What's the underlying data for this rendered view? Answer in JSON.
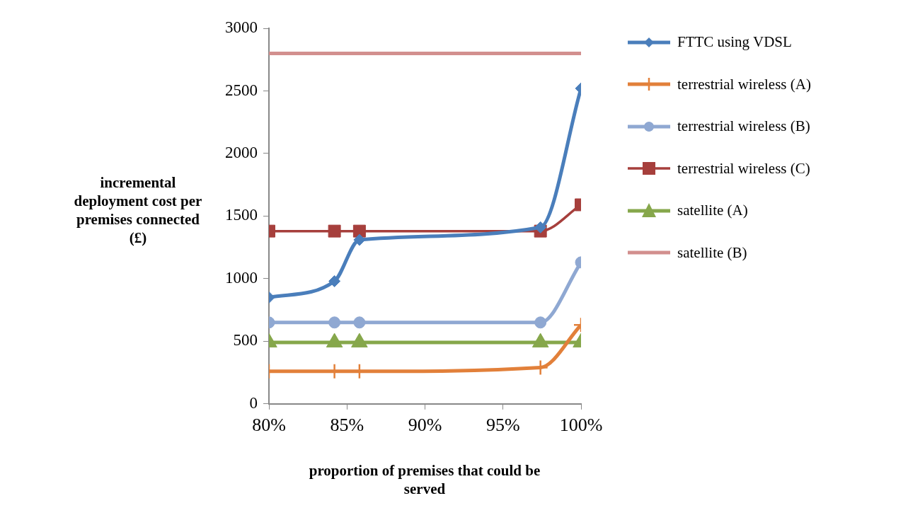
{
  "chart_data": {
    "type": "line",
    "xlabel": "proportion of premises that could be served",
    "ylabel": "incremental deployment cost per premises connected (£)",
    "xlim": [
      80,
      100
    ],
    "xticks": [
      {
        "value": 80,
        "label": "80%"
      },
      {
        "value": 85,
        "label": "85%"
      },
      {
        "value": 90,
        "label": "90%"
      },
      {
        "value": 95,
        "label": "95%"
      },
      {
        "value": 100,
        "label": "100%"
      }
    ],
    "ylim": [
      0,
      3000
    ],
    "yticks": [
      0,
      500,
      1000,
      1500,
      2000,
      2500,
      3000
    ],
    "grid": false,
    "legend": "right",
    "line_style": "solid",
    "series": [
      {
        "name": "FTTC using VDSL",
        "color": "#4a7ebb",
        "marker": "diamond",
        "x": [
          80,
          84.2,
          85.8,
          97.4,
          100
        ],
        "values": [
          850,
          980,
          1310,
          1410,
          2520
        ]
      },
      {
        "name": "terrestrial wireless (A)",
        "color": "#e2803a",
        "marker": "cross",
        "x": [
          80,
          84.2,
          85.8,
          97.4,
          100
        ],
        "values": [
          260,
          260,
          260,
          290,
          630
        ]
      },
      {
        "name": "terrestrial wireless (B)",
        "color": "#8fa8d2",
        "marker": "circle",
        "x": [
          80,
          84.2,
          85.8,
          97.4,
          100
        ],
        "values": [
          650,
          650,
          650,
          650,
          1130
        ]
      },
      {
        "name": "terrestrial wireless (C)",
        "color": "#a63f3c",
        "marker": "square",
        "x": [
          80,
          84.2,
          85.8,
          97.4,
          100
        ],
        "values": [
          1380,
          1380,
          1380,
          1380,
          1590
        ]
      },
      {
        "name": "satellite (A)",
        "color": "#86a74b",
        "marker": "triangle",
        "x": [
          80,
          84.2,
          85.8,
          97.4,
          100
        ],
        "values": [
          490,
          490,
          490,
          490,
          490
        ]
      },
      {
        "name": "satellite (B)",
        "color": "#d28f8e",
        "marker": "none",
        "x": [
          80,
          100
        ],
        "values": [
          2800,
          2800
        ]
      }
    ]
  }
}
